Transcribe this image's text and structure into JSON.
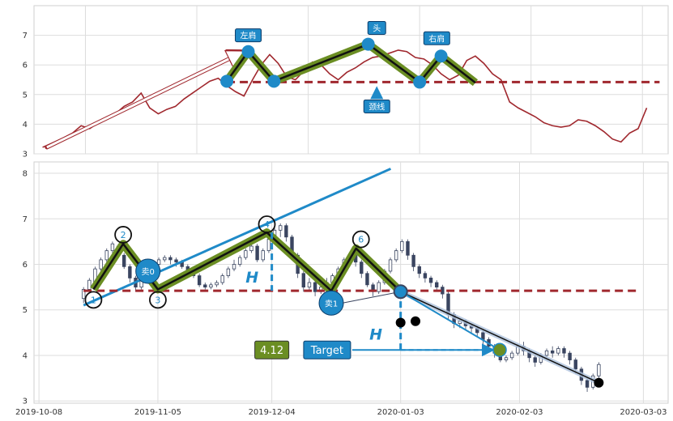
{
  "chart_data": [
    {
      "type": "line",
      "panel": "top",
      "ylim": [
        3,
        8
      ],
      "yticks": [
        3,
        4,
        5,
        6,
        7
      ],
      "grid": true,
      "line_color": "#a0282e",
      "x": [
        0,
        2,
        5,
        7,
        9,
        11,
        13,
        15,
        17,
        19,
        21,
        23,
        25,
        27,
        29,
        31,
        33,
        35,
        37,
        39,
        41,
        43,
        45,
        47,
        49,
        51,
        53,
        55,
        57,
        59,
        61,
        63,
        65,
        67,
        69,
        71,
        73,
        75,
        77,
        79,
        81,
        83,
        85,
        87,
        89,
        91,
        93,
        95,
        97,
        99,
        101,
        103,
        105,
        107,
        109,
        111,
        113,
        115,
        117,
        119,
        121,
        123,
        125,
        127,
        129,
        131,
        133,
        135,
        137,
        139,
        141
      ],
      "values": [
        3.22,
        3.35,
        3.55,
        3.7,
        3.95,
        3.85,
        4.05,
        4.25,
        4.35,
        4.6,
        4.75,
        5.05,
        4.55,
        4.35,
        4.5,
        4.6,
        4.85,
        5.05,
        5.25,
        5.45,
        5.55,
        5.3,
        5.1,
        4.95,
        5.5,
        6.0,
        6.35,
        6.05,
        5.6,
        5.5,
        5.8,
        6.1,
        6.0,
        5.7,
        5.5,
        5.75,
        5.9,
        6.1,
        6.25,
        6.3,
        6.4,
        6.5,
        6.45,
        6.25,
        6.2,
        6.0,
        5.7,
        5.5,
        5.65,
        6.15,
        6.3,
        6.05,
        5.7,
        5.5,
        4.75,
        4.55,
        4.4,
        4.25,
        4.05,
        3.95,
        3.9,
        3.95,
        4.15,
        4.1,
        3.95,
        3.75,
        3.5,
        3.4,
        3.7,
        3.85,
        4.55
      ],
      "neckline": {
        "value": 5.42,
        "x_start": 43,
        "x_end": 144
      },
      "pattern": [
        {
          "x": 43,
          "y": 5.45
        },
        {
          "x": 48,
          "y": 6.45
        },
        {
          "x": 54,
          "y": 5.45
        },
        {
          "x": 76,
          "y": 6.7
        },
        {
          "x": 88,
          "y": 5.42
        },
        {
          "x": 93,
          "y": 6.3
        },
        {
          "x": 101,
          "y": 5.4
        }
      ],
      "circles": [
        {
          "x": 43,
          "y": 5.45
        },
        {
          "x": 48,
          "y": 6.45
        },
        {
          "x": 54,
          "y": 5.45
        },
        {
          "x": 76,
          "y": 6.7
        },
        {
          "x": 88,
          "y": 5.42
        },
        {
          "x": 93,
          "y": 6.3
        }
      ],
      "trend_arrow": {
        "x1": 1,
        "y1": 3.22,
        "x2": 47,
        "y2": 6.45
      },
      "labels": [
        {
          "text": "左肩",
          "x": 48,
          "y": 7.0
        },
        {
          "text": "头",
          "x": 78,
          "y": 7.25
        },
        {
          "text": "右肩",
          "x": 92,
          "y": 6.9
        },
        {
          "text": "颈线",
          "x": 78,
          "y": 4.6
        }
      ],
      "neckline_arrow": {
        "x": 78,
        "y1": 4.9,
        "y2": 5.45
      }
    },
    {
      "type": "candlestick",
      "panel": "bottom",
      "ylim": [
        2.95,
        8.25
      ],
      "yticks": [
        3,
        4,
        5,
        6,
        7,
        8
      ],
      "grid": true,
      "xtick_labels": [
        "2019-10-08",
        "2019-11-05",
        "2019-12-04",
        "2020-01-03",
        "2020-02-03",
        "2020-03-03"
      ],
      "xtick_positions": [
        -9,
        15,
        38,
        64,
        88,
        113
      ],
      "candles": [
        [
          5.25,
          5.45,
          5.15,
          5.5
        ],
        [
          5.45,
          5.65,
          5.4,
          5.7
        ],
        [
          5.6,
          5.9,
          5.55,
          5.95
        ],
        [
          5.9,
          6.1,
          5.85,
          6.15
        ],
        [
          6.1,
          6.3,
          6.0,
          6.35
        ],
        [
          6.3,
          6.45,
          6.2,
          6.5
        ],
        [
          6.4,
          6.2,
          6.15,
          6.45
        ],
        [
          6.2,
          5.95,
          5.9,
          6.25
        ],
        [
          5.95,
          5.7,
          5.6,
          6.0
        ],
        [
          5.7,
          5.5,
          5.4,
          5.75
        ],
        [
          5.5,
          5.7,
          5.45,
          5.75
        ],
        [
          5.7,
          5.85,
          5.65,
          5.9
        ],
        [
          5.85,
          6.0,
          5.8,
          6.05
        ],
        [
          6.0,
          6.1,
          5.95,
          6.15
        ],
        [
          6.1,
          6.15,
          6.05,
          6.2
        ],
        [
          6.15,
          6.1,
          6.0,
          6.2
        ],
        [
          6.1,
          6.05,
          5.95,
          6.15
        ],
        [
          6.05,
          5.95,
          5.9,
          6.1
        ],
        [
          5.95,
          5.85,
          5.8,
          6.0
        ],
        [
          5.85,
          5.75,
          5.7,
          5.9
        ],
        [
          5.75,
          5.55,
          5.5,
          5.8
        ],
        [
          5.55,
          5.5,
          5.45,
          5.6
        ],
        [
          5.5,
          5.55,
          5.45,
          5.6
        ],
        [
          5.55,
          5.6,
          5.5,
          5.65
        ],
        [
          5.6,
          5.75,
          5.55,
          5.8
        ],
        [
          5.75,
          5.9,
          5.7,
          5.95
        ],
        [
          5.9,
          6.0,
          5.85,
          6.1
        ],
        [
          6.0,
          6.15,
          5.95,
          6.2
        ],
        [
          6.15,
          6.3,
          6.1,
          6.35
        ],
        [
          6.3,
          6.4,
          6.25,
          6.45
        ],
        [
          6.4,
          6.1,
          6.05,
          6.45
        ],
        [
          6.1,
          6.3,
          6.05,
          6.35
        ],
        [
          6.3,
          6.55,
          6.25,
          6.6
        ],
        [
          6.55,
          6.75,
          6.5,
          6.8
        ],
        [
          6.75,
          6.85,
          6.6,
          6.9
        ],
        [
          6.85,
          6.6,
          6.5,
          6.9
        ],
        [
          6.6,
          6.2,
          6.1,
          6.65
        ],
        [
          6.2,
          5.8,
          5.7,
          6.25
        ],
        [
          5.8,
          5.5,
          5.4,
          5.85
        ],
        [
          5.5,
          5.6,
          5.4,
          5.7
        ],
        [
          5.6,
          5.4,
          5.3,
          5.65
        ],
        [
          5.4,
          5.5,
          5.35,
          5.55
        ],
        [
          5.5,
          5.6,
          5.45,
          5.7
        ],
        [
          5.6,
          5.75,
          5.5,
          5.8
        ],
        [
          5.75,
          5.9,
          5.65,
          5.95
        ],
        [
          5.9,
          6.1,
          5.85,
          6.15
        ],
        [
          6.1,
          6.2,
          6.0,
          6.25
        ],
        [
          6.2,
          6.05,
          5.95,
          6.3
        ],
        [
          6.05,
          5.8,
          5.7,
          6.1
        ],
        [
          5.8,
          5.55,
          5.5,
          5.85
        ],
        [
          5.55,
          5.4,
          5.3,
          5.6
        ],
        [
          5.4,
          5.6,
          5.35,
          5.65
        ],
        [
          5.6,
          5.85,
          5.55,
          5.9
        ],
        [
          5.85,
          6.1,
          5.8,
          6.15
        ],
        [
          6.1,
          6.3,
          6.05,
          6.35
        ],
        [
          6.3,
          6.5,
          6.25,
          6.55
        ],
        [
          6.5,
          6.2,
          6.1,
          6.55
        ],
        [
          6.2,
          5.95,
          5.85,
          6.25
        ],
        [
          5.95,
          5.8,
          5.7,
          6.0
        ],
        [
          5.8,
          5.7,
          5.6,
          5.85
        ],
        [
          5.7,
          5.6,
          5.5,
          5.75
        ],
        [
          5.6,
          5.5,
          5.4,
          5.65
        ],
        [
          5.5,
          5.35,
          5.25,
          5.55
        ],
        [
          5.35,
          4.9,
          4.8,
          5.4
        ],
        [
          4.9,
          4.7,
          4.6,
          4.95
        ],
        [
          4.7,
          4.75,
          4.6,
          4.8
        ],
        [
          4.75,
          4.65,
          4.55,
          4.8
        ],
        [
          4.65,
          4.6,
          4.5,
          4.7
        ],
        [
          4.6,
          4.5,
          4.4,
          4.65
        ],
        [
          4.5,
          4.35,
          4.25,
          4.55
        ],
        [
          4.35,
          4.2,
          4.1,
          4.4
        ],
        [
          4.2,
          4.05,
          3.95,
          4.25
        ],
        [
          4.05,
          3.9,
          3.85,
          4.1
        ],
        [
          3.9,
          3.95,
          3.85,
          4.0
        ],
        [
          3.95,
          4.05,
          3.9,
          4.1
        ],
        [
          4.05,
          4.2,
          4.0,
          4.25
        ],
        [
          4.2,
          4.1,
          4.0,
          4.3
        ],
        [
          4.1,
          3.95,
          3.85,
          4.15
        ],
        [
          3.95,
          3.85,
          3.75,
          4.0
        ],
        [
          3.85,
          4.0,
          3.8,
          4.05
        ],
        [
          4.0,
          4.1,
          3.95,
          4.15
        ],
        [
          4.1,
          4.05,
          3.95,
          4.2
        ],
        [
          4.05,
          4.15,
          4.0,
          4.2
        ],
        [
          4.15,
          4.05,
          3.95,
          4.2
        ],
        [
          4.05,
          3.9,
          3.8,
          4.1
        ],
        [
          3.9,
          3.7,
          3.6,
          3.95
        ],
        [
          3.7,
          3.45,
          3.35,
          3.75
        ],
        [
          3.45,
          3.3,
          3.2,
          3.5
        ],
        [
          3.3,
          3.55,
          3.25,
          3.6
        ],
        [
          3.55,
          3.8,
          3.5,
          3.85
        ]
      ],
      "candle_start_x": 0,
      "neckline": {
        "value": 5.42,
        "x_start": 0,
        "x_end": 112
      },
      "pattern": [
        {
          "x": 2,
          "y": 5.45
        },
        {
          "x": 8,
          "y": 6.45
        },
        {
          "x": 15,
          "y": 5.45
        },
        {
          "x": 37,
          "y": 6.7
        },
        {
          "x": 50,
          "y": 5.42
        },
        {
          "x": 55,
          "y": 6.35
        },
        {
          "x": 64,
          "y": 5.4
        }
      ],
      "trend_line": {
        "x1": 0,
        "y1": 5.1,
        "x2": 62,
        "y2": 8.1
      },
      "points": [
        {
          "label": "1",
          "x": 2,
          "y": 5.22
        },
        {
          "label": "2",
          "x": 8,
          "y": 6.65
        },
        {
          "label": "3",
          "x": 15,
          "y": 5.22
        },
        {
          "label": "4",
          "x": 37,
          "y": 6.88
        },
        {
          "label": "6",
          "x": 56,
          "y": 6.55
        }
      ],
      "sell_points": [
        {
          "label": "卖0",
          "x": 13,
          "y": 5.85
        },
        {
          "label": "卖1",
          "x": 50,
          "y": 5.15
        }
      ],
      "breakout": {
        "x": 64,
        "y": 5.4
      },
      "target_point": {
        "x": 84,
        "y": 4.12
      },
      "target_path": [
        {
          "x": 64,
          "y": 5.4
        },
        {
          "x": 84,
          "y": 4.12
        }
      ],
      "down_path": [
        {
          "x": 64,
          "y": 5.4
        },
        {
          "x": 104,
          "y": 3.4
        }
      ],
      "black_dots": [
        {
          "x": 64,
          "y": 4.72
        },
        {
          "x": 67,
          "y": 4.75
        },
        {
          "x": 104,
          "y": 3.4
        }
      ],
      "h_markers": [
        {
          "text": "H",
          "x_line": 38,
          "y_top": 6.7,
          "y_bottom": 5.42,
          "label_x": 34,
          "label_y": 5.6
        },
        {
          "text": "H",
          "x_line": 64,
          "y_top": 5.42,
          "y_bottom": 4.12,
          "label_x": 59,
          "label_y": 4.35
        }
      ],
      "value_label": {
        "text": "4.12",
        "x": 38,
        "y": 4.12
      },
      "target_label": {
        "text": "Target",
        "x": 49,
        "y": 4.12
      }
    }
  ]
}
